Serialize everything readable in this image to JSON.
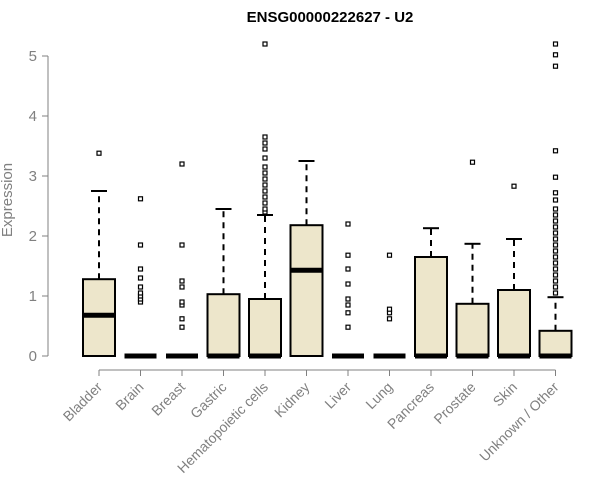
{
  "chart_data": {
    "type": "boxplot",
    "title": "ENSG00000222627 - U2",
    "xlabel": "",
    "ylabel": "Expression",
    "ylim": [
      0,
      5.2
    ],
    "yticks": [
      0,
      1,
      2,
      3,
      4,
      5
    ],
    "grid": false,
    "legend": "none",
    "colors": {
      "box_fill": "#ede6cb",
      "box_stroke": "#000000",
      "axis": "#808080",
      "text": "#808080"
    },
    "categories": [
      "Bladder",
      "Brain",
      "Breast",
      "Gastric",
      "Hematopoietic cells",
      "Kidney",
      "Liver",
      "Lung",
      "Pancreas",
      "Prostate",
      "Skin",
      "Unknown / Other"
    ],
    "boxes": [
      {
        "category": "Bladder",
        "q1": 0,
        "median": 0.68,
        "q3": 1.28,
        "whisker_low": 0,
        "whisker_high": 2.75,
        "outliers": [
          3.38
        ]
      },
      {
        "category": "Brain",
        "q1": 0,
        "median": 0,
        "q3": 0,
        "whisker_low": 0,
        "whisker_high": 0,
        "outliers": [
          0.9,
          0.95,
          1.0,
          1.05,
          1.15,
          1.3,
          1.45,
          1.85,
          2.62
        ]
      },
      {
        "category": "Breast",
        "q1": 0,
        "median": 0,
        "q3": 0,
        "whisker_low": 0,
        "whisker_high": 0,
        "outliers": [
          0.48,
          0.62,
          0.85,
          0.9,
          1.15,
          1.25,
          1.85,
          3.2
        ]
      },
      {
        "category": "Gastric",
        "q1": 0,
        "median": 0,
        "q3": 1.03,
        "whisker_low": 0,
        "whisker_high": 2.45,
        "outliers": []
      },
      {
        "category": "Hematopoietic cells",
        "q1": 0,
        "median": 0,
        "q3": 0.95,
        "whisker_low": 0,
        "whisker_high": 2.35,
        "outliers": [
          2.4,
          2.45,
          2.55,
          2.65,
          2.75,
          2.85,
          2.95,
          3.05,
          3.15,
          3.3,
          3.45,
          3.55,
          3.65,
          5.2
        ]
      },
      {
        "category": "Kidney",
        "q1": 0,
        "median": 1.43,
        "q3": 2.18,
        "whisker_low": 0,
        "whisker_high": 3.25,
        "outliers": []
      },
      {
        "category": "Liver",
        "q1": 0,
        "median": 0,
        "q3": 0,
        "whisker_low": 0,
        "whisker_high": 0,
        "outliers": [
          0.48,
          0.72,
          0.85,
          0.95,
          1.2,
          1.45,
          1.68,
          2.2
        ]
      },
      {
        "category": "Lung",
        "q1": 0,
        "median": 0,
        "q3": 0,
        "whisker_low": 0,
        "whisker_high": 0,
        "outliers": [
          0.62,
          0.72,
          0.78,
          1.68
        ]
      },
      {
        "category": "Pancreas",
        "q1": 0,
        "median": 0,
        "q3": 1.65,
        "whisker_low": 0,
        "whisker_high": 2.13,
        "outliers": []
      },
      {
        "category": "Prostate",
        "q1": 0,
        "median": 0,
        "q3": 0.87,
        "whisker_low": 0,
        "whisker_high": 1.87,
        "outliers": [
          3.23
        ]
      },
      {
        "category": "Skin",
        "q1": 0,
        "median": 0,
        "q3": 1.1,
        "whisker_low": 0,
        "whisker_high": 1.95,
        "outliers": [
          2.83
        ]
      },
      {
        "category": "Unknown / Other",
        "q1": 0,
        "median": 0,
        "q3": 0.42,
        "whisker_low": 0,
        "whisker_high": 0.98,
        "outliers": [
          1.05,
          1.15,
          1.25,
          1.35,
          1.45,
          1.55,
          1.65,
          1.75,
          1.85,
          1.95,
          2.05,
          2.15,
          2.25,
          2.35,
          2.45,
          2.6,
          2.72,
          2.98,
          3.42,
          4.83,
          5.02,
          5.2
        ]
      }
    ]
  }
}
